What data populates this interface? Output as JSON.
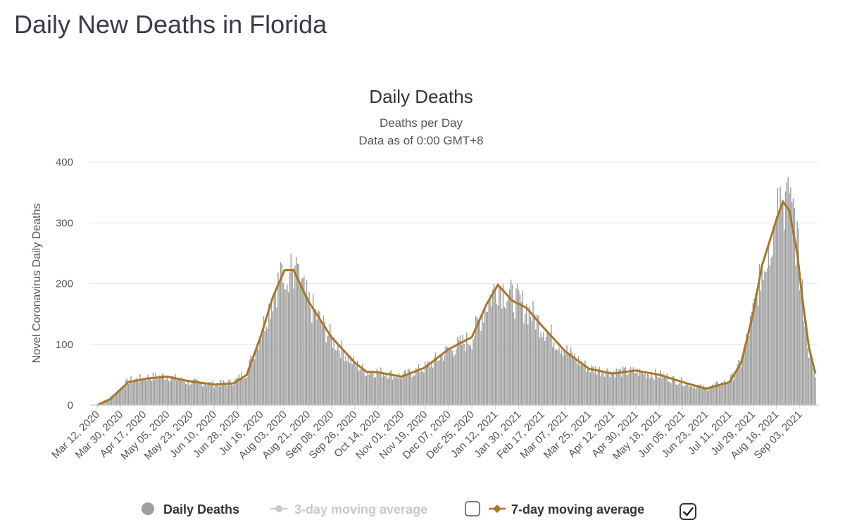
{
  "page": {
    "title": "Daily New Deaths in Florida"
  },
  "colors": {
    "bars": "#9e9e9e",
    "ma7": "#a5782a",
    "ma3_disabled": "#c8c8c8",
    "grid": "#e6e6e6"
  },
  "chart_data": {
    "type": "bar",
    "title": "Daily Deaths",
    "subtitle": [
      "Deaths per Day",
      "Data as of 0:00 GMT+8"
    ],
    "ylabel": "Novel Coronavirus Daily Deaths",
    "xlabel": "",
    "ylim": [
      0,
      400
    ],
    "yticks": [
      0,
      100,
      200,
      300,
      400
    ],
    "grid": true,
    "legend_placement": "bottom",
    "x_start": "2020-03-12",
    "x_end": "2021-09-15",
    "xticks": [
      "Mar 12, 2020",
      "Mar 30, 2020",
      "Apr 17, 2020",
      "May 05, 2020",
      "May 23, 2020",
      "Jun 10, 2020",
      "Jun 28, 2020",
      "Jul 16, 2020",
      "Aug 03, 2020",
      "Aug 21, 2020",
      "Sep 08, 2020",
      "Sep 26, 2020",
      "Oct 14, 2020",
      "Nov 01, 2020",
      "Nov 19, 2020",
      "Dec 07, 2020",
      "Dec 25, 2020",
      "Jan 12, 2021",
      "Jan 30, 2021",
      "Feb 17, 2021",
      "Mar 07, 2021",
      "Mar 25, 2021",
      "Apr 12, 2021",
      "Apr 30, 2021",
      "May 18, 2021",
      "Jun 05, 2021",
      "Jun 23, 2021",
      "Jul 11, 2021",
      "Jul 29, 2021",
      "Aug 16, 2021",
      "Sep 03, 2021"
    ],
    "series": [
      {
        "name": "Daily Deaths",
        "type": "bar",
        "anchors": [
          [
            "2020-03-12",
            0
          ],
          [
            "2020-03-22",
            12
          ],
          [
            "2020-04-05",
            40
          ],
          [
            "2020-04-20",
            46
          ],
          [
            "2020-05-05",
            48
          ],
          [
            "2020-05-20",
            38
          ],
          [
            "2020-06-10",
            35
          ],
          [
            "2020-06-25",
            38
          ],
          [
            "2020-07-05",
            55
          ],
          [
            "2020-07-16",
            120
          ],
          [
            "2020-07-25",
            180
          ],
          [
            "2020-08-03",
            225
          ],
          [
            "2020-08-10",
            222
          ],
          [
            "2020-08-21",
            170
          ],
          [
            "2020-09-08",
            110
          ],
          [
            "2020-09-26",
            68
          ],
          [
            "2020-10-05",
            55
          ],
          [
            "2020-10-14",
            55
          ],
          [
            "2020-11-01",
            48
          ],
          [
            "2020-11-19",
            62
          ],
          [
            "2020-12-07",
            90
          ],
          [
            "2020-12-25",
            110
          ],
          [
            "2021-01-05",
            165
          ],
          [
            "2021-01-14",
            200
          ],
          [
            "2021-01-25",
            175
          ],
          [
            "2021-02-05",
            160
          ],
          [
            "2021-02-17",
            130
          ],
          [
            "2021-03-07",
            90
          ],
          [
            "2021-03-25",
            60
          ],
          [
            "2021-04-12",
            55
          ],
          [
            "2021-04-30",
            55
          ],
          [
            "2021-05-18",
            50
          ],
          [
            "2021-06-05",
            38
          ],
          [
            "2021-06-23",
            28
          ],
          [
            "2021-07-11",
            40
          ],
          [
            "2021-07-20",
            70
          ],
          [
            "2021-07-29",
            150
          ],
          [
            "2021-08-05",
            230
          ],
          [
            "2021-08-16",
            300
          ],
          [
            "2021-08-21",
            335
          ],
          [
            "2021-08-26",
            330
          ],
          [
            "2021-09-01",
            270
          ],
          [
            "2021-09-05",
            180
          ],
          [
            "2021-09-10",
            90
          ],
          [
            "2021-09-15",
            45
          ]
        ]
      },
      {
        "name": "3-day moving average",
        "type": "line",
        "visible": false
      },
      {
        "name": "7-day moving average",
        "type": "line",
        "visible": true,
        "anchors": [
          [
            "2020-03-12",
            0
          ],
          [
            "2020-03-22",
            10
          ],
          [
            "2020-04-05",
            38
          ],
          [
            "2020-04-20",
            44
          ],
          [
            "2020-05-05",
            47
          ],
          [
            "2020-05-20",
            40
          ],
          [
            "2020-06-10",
            34
          ],
          [
            "2020-06-25",
            36
          ],
          [
            "2020-07-05",
            50
          ],
          [
            "2020-07-16",
            115
          ],
          [
            "2020-07-25",
            178
          ],
          [
            "2020-08-03",
            222
          ],
          [
            "2020-08-10",
            222
          ],
          [
            "2020-08-21",
            172
          ],
          [
            "2020-09-08",
            112
          ],
          [
            "2020-09-26",
            70
          ],
          [
            "2020-10-05",
            55
          ],
          [
            "2020-10-14",
            54
          ],
          [
            "2020-11-01",
            47
          ],
          [
            "2020-11-19",
            62
          ],
          [
            "2020-12-07",
            92
          ],
          [
            "2020-12-25",
            112
          ],
          [
            "2021-01-05",
            165
          ],
          [
            "2021-01-14",
            198
          ],
          [
            "2021-01-25",
            172
          ],
          [
            "2021-02-05",
            160
          ],
          [
            "2021-02-17",
            130
          ],
          [
            "2021-03-07",
            88
          ],
          [
            "2021-03-25",
            60
          ],
          [
            "2021-04-12",
            52
          ],
          [
            "2021-04-30",
            57
          ],
          [
            "2021-05-18",
            50
          ],
          [
            "2021-06-05",
            38
          ],
          [
            "2021-06-23",
            27
          ],
          [
            "2021-07-11",
            38
          ],
          [
            "2021-07-20",
            70
          ],
          [
            "2021-07-29",
            150
          ],
          [
            "2021-08-05",
            230
          ],
          [
            "2021-08-16",
            305
          ],
          [
            "2021-08-21",
            335
          ],
          [
            "2021-08-26",
            320
          ],
          [
            "2021-09-01",
            250
          ],
          [
            "2021-09-05",
            175
          ],
          [
            "2021-09-10",
            95
          ],
          [
            "2021-09-15",
            52
          ]
        ]
      }
    ]
  },
  "legend": {
    "items": [
      {
        "label": "Daily Deaths",
        "enabled": true
      },
      {
        "label": "3-day moving average",
        "enabled": false,
        "checked": false
      },
      {
        "label": "7-day moving average",
        "enabled": true,
        "checked": true
      }
    ]
  }
}
